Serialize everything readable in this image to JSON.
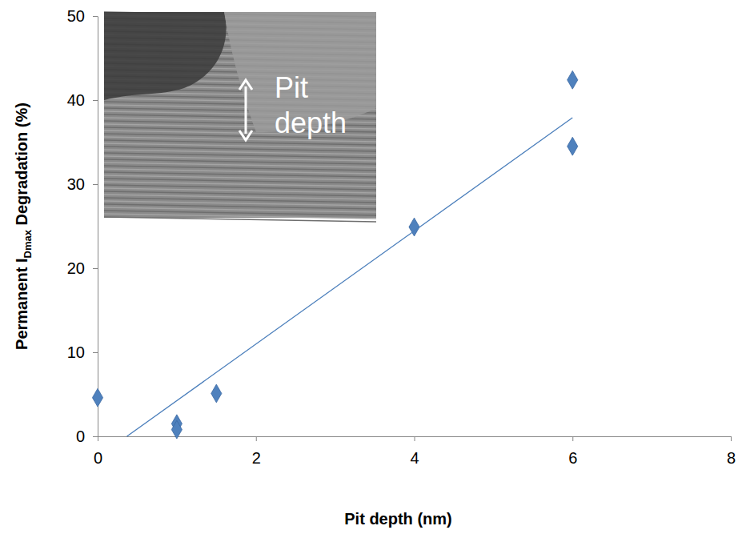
{
  "chart_data": {
    "type": "scatter",
    "x_label": "Pit depth (nm)",
    "y_label": "Permanent IDmax Degradation (%)",
    "y_label_subscript": "Dmax",
    "annotations": [
      "Pit depth"
    ],
    "xlim": [
      0,
      8
    ],
    "xticks": [
      0,
      2,
      4,
      6,
      8
    ],
    "ylim": [
      0,
      50
    ],
    "yticks": [
      0,
      10,
      20,
      30,
      40,
      50
    ],
    "grid": false,
    "series": [
      {
        "type": "scatter",
        "marker": "diamond",
        "color": "#4f81bd",
        "x": [
          0,
          1,
          1,
          1.5,
          4,
          6,
          6
        ],
        "values": [
          4.6,
          1.5,
          0.8,
          5.1,
          24.9,
          42.4,
          34.5
        ]
      },
      {
        "type": "line",
        "line_style": "solid",
        "color": "#4a7ebb",
        "x": [
          0.37,
          6
        ],
        "values": [
          0,
          37.9
        ]
      }
    ]
  }
}
